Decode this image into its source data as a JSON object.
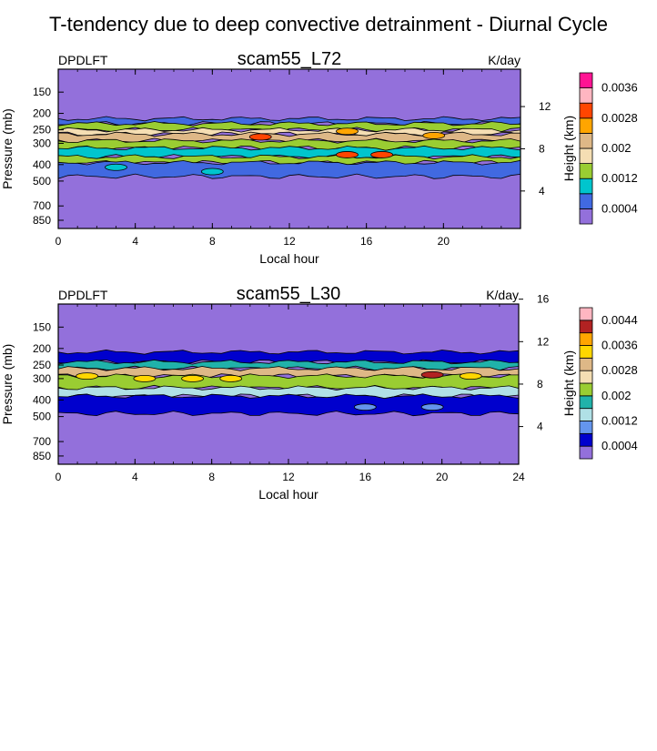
{
  "page_title": "T-tendency due to deep convective detrainment - Diurnal Cycle",
  "colors": {
    "palette": [
      "#9370db",
      "#4169e1",
      "#00c5cd",
      "#9acd32",
      "#f5deb3",
      "#deb887",
      "#ffa500",
      "#ff4500",
      "#ffb6c1",
      "#ff1493"
    ],
    "palette_l30": [
      "#9370db",
      "#0000cd",
      "#6495ed",
      "#b0e0e6",
      "#20b2aa",
      "#9acd32",
      "#f5deb3",
      "#deb887",
      "#ffd700",
      "#ffa500",
      "#b22222",
      "#ffb6c1",
      "#ff1493"
    ]
  },
  "chart_data": [
    {
      "type": "heatmap",
      "title": "scam55_L72",
      "variable": "DPDLFT",
      "units": "K/day",
      "xlabel": "Local hour",
      "ylabel": "Pressure (mb)",
      "right_axis_label": "Height (km)",
      "x_ticks": [
        0,
        4,
        8,
        12,
        16,
        20
      ],
      "xlim": [
        0,
        24
      ],
      "y_ticks": [
        150,
        200,
        250,
        300,
        400,
        500,
        700,
        850
      ],
      "right_ticks": [
        4,
        8,
        12
      ],
      "colorbar_labels": [
        "0.0004",
        "0.0012",
        "0.002",
        "0.0028",
        "0.0036"
      ],
      "levels": [
        0.0004,
        0.0008,
        0.0012,
        0.0016,
        0.002,
        0.0024,
        0.0028,
        0.0032,
        0.0036,
        0.004
      ],
      "bands": [
        {
          "p_top": 215,
          "p_bottom": 230,
          "level": 1
        },
        {
          "p_top": 230,
          "p_bottom": 250,
          "level": 3
        },
        {
          "p_top": 250,
          "p_bottom": 265,
          "level": 4
        },
        {
          "p_top": 265,
          "p_bottom": 290,
          "level": 5
        },
        {
          "p_top": 290,
          "p_bottom": 320,
          "level": 3
        },
        {
          "p_top": 320,
          "p_bottom": 360,
          "level": 2
        },
        {
          "p_top": 360,
          "p_bottom": 390,
          "level": 3
        },
        {
          "p_top": 390,
          "p_bottom": 470,
          "level": 1
        }
      ],
      "blobs": [
        {
          "x": 15.0,
          "p": 255,
          "level": 6
        },
        {
          "x": 19.5,
          "p": 270,
          "level": 6
        },
        {
          "x": 10.5,
          "p": 275,
          "level": 7
        },
        {
          "x": 15.0,
          "p": 350,
          "level": 7
        },
        {
          "x": 16.8,
          "p": 350,
          "level": 7
        },
        {
          "x": 8.0,
          "p": 440,
          "level": 2
        },
        {
          "x": 3.0,
          "p": 415,
          "level": 2
        }
      ]
    },
    {
      "type": "heatmap",
      "title": "scam55_L30",
      "variable": "DPDLFT",
      "units": "K/day",
      "xlabel": "Local hour",
      "ylabel": "Pressure (mb)",
      "right_axis_label": "Height (km)",
      "x_ticks": [
        0,
        4,
        8,
        12,
        16,
        20,
        24
      ],
      "xlim": [
        0,
        24
      ],
      "y_ticks": [
        150,
        200,
        250,
        300,
        400,
        500,
        700,
        850
      ],
      "right_ticks": [
        4,
        8,
        12,
        16
      ],
      "colorbar_labels": [
        "0.0004",
        "0.0012",
        "0.002",
        "0.0028",
        "0.0036",
        "0.0044"
      ],
      "levels": [
        0.0004,
        0.0008,
        0.0012,
        0.0016,
        0.002,
        0.0024,
        0.0028,
        0.0032,
        0.0036,
        0.004,
        0.0044,
        0.0048
      ],
      "bands": [
        {
          "p_top": 210,
          "p_bottom": 240,
          "level": 1
        },
        {
          "p_top": 240,
          "p_bottom": 262,
          "level": 4
        },
        {
          "p_top": 262,
          "p_bottom": 290,
          "level": 7
        },
        {
          "p_top": 290,
          "p_bottom": 340,
          "level": 5
        },
        {
          "p_top": 340,
          "p_bottom": 380,
          "level": 3
        },
        {
          "p_top": 380,
          "p_bottom": 480,
          "level": 1
        }
      ],
      "blobs": [
        {
          "x": 1.5,
          "p": 290,
          "level": 8
        },
        {
          "x": 4.5,
          "p": 300,
          "level": 8
        },
        {
          "x": 7.0,
          "p": 300,
          "level": 8
        },
        {
          "x": 9.0,
          "p": 300,
          "level": 8
        },
        {
          "x": 19.5,
          "p": 285,
          "level": 10
        },
        {
          "x": 21.5,
          "p": 290,
          "level": 8
        },
        {
          "x": 16.0,
          "p": 440,
          "level": 2
        },
        {
          "x": 19.5,
          "p": 440,
          "level": 2
        }
      ]
    }
  ]
}
